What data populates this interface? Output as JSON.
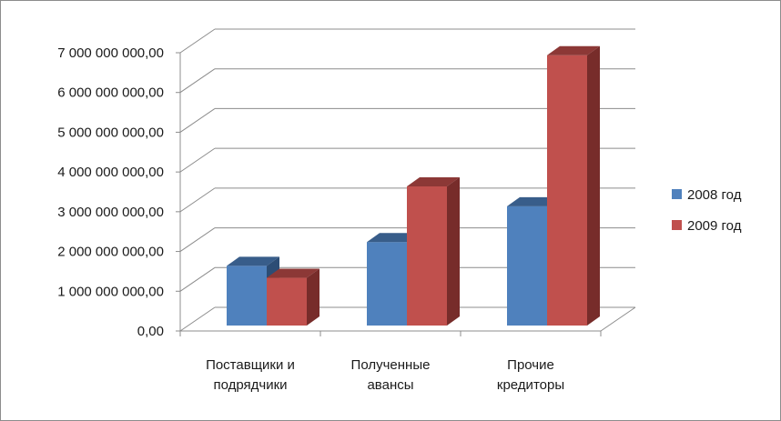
{
  "chart_data": {
    "type": "bar",
    "style": "3d-clustered-column",
    "categories": [
      [
        "Поставщики и",
        "подрядчики"
      ],
      [
        "Полученные",
        "авансы"
      ],
      [
        "Прочие",
        "кредиторы"
      ]
    ],
    "series": [
      {
        "name": "2008 год",
        "values": [
          1500000000,
          2100000000,
          3000000000
        ],
        "color": "#4f81bd",
        "top_color": "#385d8a",
        "side_color": "#2c4d75"
      },
      {
        "name": "2009 год",
        "values": [
          1200000000,
          3500000000,
          6800000000
        ],
        "color": "#c0504d",
        "top_color": "#8c3836",
        "side_color": "#772c2a"
      }
    ],
    "ylim": [
      0,
      7000000000
    ],
    "yticks": [
      0,
      1000000000,
      2000000000,
      3000000000,
      4000000000,
      5000000000,
      6000000000,
      7000000000
    ],
    "ytick_labels": [
      "0,00",
      "1 000 000 000,00",
      "2 000 000 000,00",
      "3 000 000 000,00",
      "4 000 000 000,00",
      "5 000 000 000,00",
      "6 000 000 000,00",
      "7 000 000 000,00"
    ],
    "grid": true,
    "legend_position": "right",
    "title": "",
    "xlabel": "",
    "ylabel": ""
  }
}
